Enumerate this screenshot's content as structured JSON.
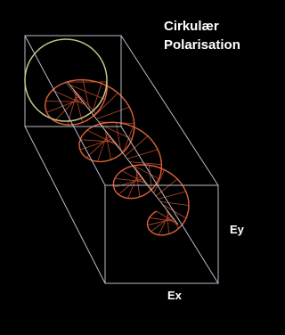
{
  "title": {
    "lines": [
      "Cirkulær",
      "Polarisation"
    ]
  },
  "labels": {
    "ey": "Ey",
    "ex": "Ex"
  }
}
